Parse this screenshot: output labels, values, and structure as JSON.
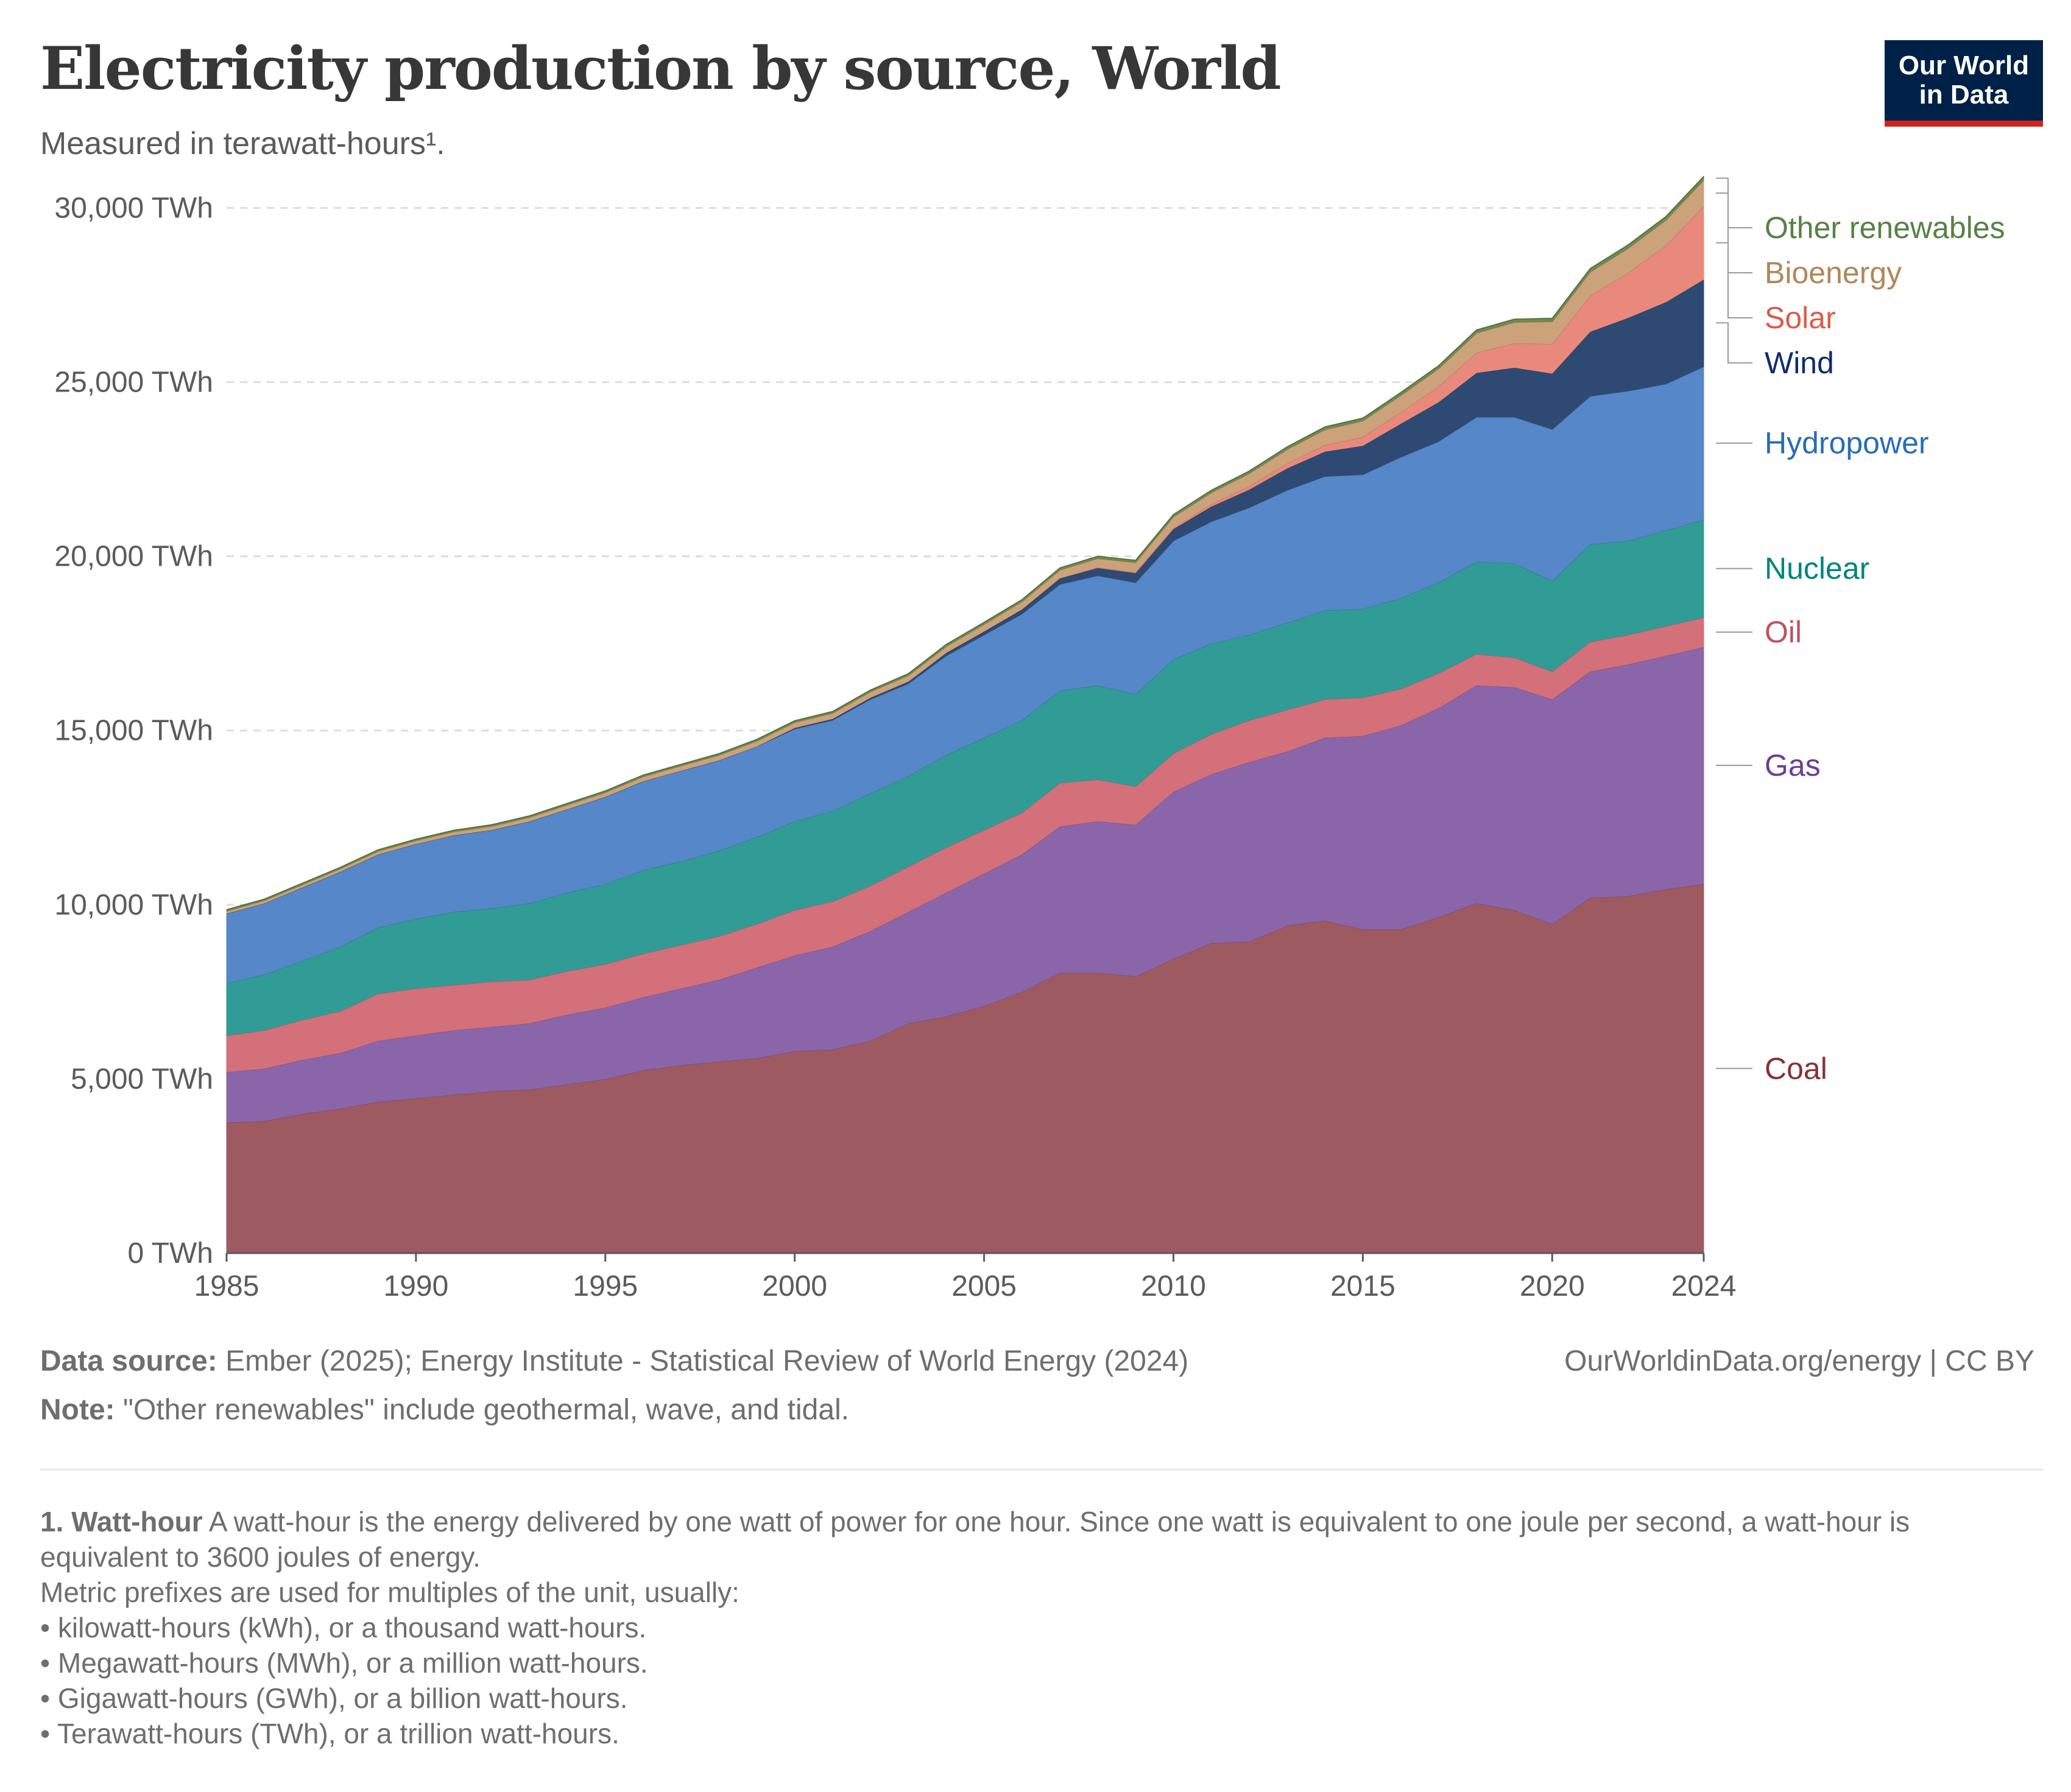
{
  "header": {
    "title": "Electricity production by source, World",
    "subtitle": "Measured in terawatt-hours¹."
  },
  "logo": {
    "line1": "Our World",
    "line2": "in Data"
  },
  "footer": {
    "source_label": "Data source:",
    "source_text": " Ember (2025); Energy Institute - Statistical Review of World Energy (2024)",
    "url": "OurWorldinData.org/energy | CC BY",
    "note_label": "Note:",
    "note_text": " \"Other renewables\" include geothermal, wave, and tidal."
  },
  "footnote": {
    "term": "1. Watt-hour",
    "definition": " A watt-hour is the energy delivered by one watt of power for one hour. Since one watt is equivalent to one joule per second, a watt-hour is equivalent to 3600 joules of energy.",
    "prefix_intro": "Metric prefixes are used for multiples of the unit, usually:",
    "bullets": [
      "• kilowatt-hours (kWh), or a thousand watt-hours.",
      "• Megawatt-hours (MWh), or a million watt-hours.",
      "• Gigawatt-hours (GWh), or a billion watt-hours.",
      "• Terawatt-hours (TWh), or a trillion watt-hours."
    ]
  },
  "chart_data": {
    "type": "area",
    "stacked": true,
    "x": [
      1985,
      1986,
      1987,
      1988,
      1989,
      1990,
      1991,
      1992,
      1993,
      1994,
      1995,
      1996,
      1997,
      1998,
      1999,
      2000,
      2001,
      2002,
      2003,
      2004,
      2005,
      2006,
      2007,
      2008,
      2009,
      2010,
      2011,
      2012,
      2013,
      2014,
      2015,
      2016,
      2017,
      2018,
      2019,
      2020,
      2021,
      2022,
      2023,
      2024
    ],
    "xticks": [
      1985,
      1990,
      1995,
      2000,
      2005,
      2010,
      2015,
      2020,
      2024
    ],
    "ylim": [
      0,
      30000
    ],
    "yticks": [
      0,
      5000,
      10000,
      15000,
      20000,
      25000,
      30000
    ],
    "ytick_labels": [
      "0 TWh",
      "5,000 TWh",
      "10,000 TWh",
      "15,000 TWh",
      "20,000 TWh",
      "25,000 TWh",
      "30,000 TWh"
    ],
    "grid": "horizontal-dashed",
    "legend": "right, labels at series ends",
    "series": [
      {
        "name": "Coal",
        "color": "#9e5a61",
        "label_color": "#883039",
        "values": [
          3750,
          3800,
          4000,
          4150,
          4350,
          4450,
          4550,
          4650,
          4700,
          4850,
          5000,
          5250,
          5400,
          5500,
          5600,
          5800,
          5850,
          6100,
          6600,
          6800,
          7100,
          7500,
          8050,
          8050,
          7950,
          8450,
          8900,
          8950,
          9400,
          9550,
          9300,
          9300,
          9650,
          10050,
          9850,
          9450,
          10200,
          10250,
          10450,
          10600
        ]
      },
      {
        "name": "Gas",
        "color": "#8b65a9",
        "label_color": "#6d3e91",
        "values": [
          1450,
          1500,
          1550,
          1600,
          1750,
          1800,
          1850,
          1850,
          1900,
          2000,
          2050,
          2100,
          2200,
          2350,
          2600,
          2750,
          2950,
          3150,
          3200,
          3550,
          3800,
          3950,
          4200,
          4350,
          4350,
          4800,
          4850,
          5150,
          5000,
          5250,
          5550,
          5850,
          6000,
          6250,
          6400,
          6450,
          6500,
          6650,
          6700,
          6800
        ]
      },
      {
        "name": "Oil",
        "color": "#d3707a",
        "label_color": "#c15065",
        "values": [
          1050,
          1100,
          1150,
          1200,
          1350,
          1350,
          1300,
          1300,
          1250,
          1250,
          1250,
          1250,
          1250,
          1250,
          1250,
          1300,
          1300,
          1300,
          1300,
          1300,
          1250,
          1200,
          1250,
          1200,
          1100,
          1100,
          1150,
          1200,
          1200,
          1100,
          1100,
          1050,
          1000,
          900,
          850,
          800,
          850,
          850,
          850,
          850
        ]
      },
      {
        "name": "Nuclear",
        "color": "#319c96",
        "label_color": "#00847e",
        "values": [
          1500,
          1600,
          1700,
          1850,
          1900,
          2000,
          2100,
          2100,
          2200,
          2250,
          2300,
          2400,
          2400,
          2450,
          2500,
          2550,
          2600,
          2650,
          2600,
          2650,
          2650,
          2650,
          2650,
          2700,
          2650,
          2700,
          2600,
          2450,
          2500,
          2550,
          2550,
          2600,
          2600,
          2650,
          2700,
          2600,
          2800,
          2700,
          2750,
          2800
        ]
      },
      {
        "name": "Hydropower",
        "color": "#5587c9",
        "label_color": "#286bbb",
        "values": [
          2000,
          2050,
          2100,
          2150,
          2100,
          2150,
          2200,
          2250,
          2350,
          2400,
          2500,
          2550,
          2600,
          2600,
          2600,
          2650,
          2600,
          2700,
          2650,
          2850,
          2950,
          3050,
          3050,
          3150,
          3200,
          3400,
          3500,
          3650,
          3800,
          3850,
          3850,
          4050,
          4050,
          4150,
          4200,
          4350,
          4250,
          4300,
          4200,
          4400
        ]
      },
      {
        "name": "Wind",
        "color": "#2e4a73",
        "label_color": "#0f2d6b",
        "values": [
          0,
          0,
          0,
          0,
          0,
          0,
          0,
          0,
          0,
          0,
          0,
          0,
          0,
          0,
          0,
          30,
          40,
          50,
          60,
          85,
          100,
          130,
          170,
          220,
          275,
          340,
          435,
          520,
          630,
          710,
          830,
          960,
          1130,
          1270,
          1420,
          1600,
          1850,
          2100,
          2350,
          2500
        ]
      },
      {
        "name": "Solar",
        "color": "#e9897b",
        "label_color": "#d95c4c",
        "values": [
          0,
          0,
          0,
          0,
          0,
          0,
          0,
          0,
          0,
          0,
          0,
          0,
          0,
          0,
          0,
          0,
          0,
          0,
          0,
          0,
          0,
          5,
          10,
          20,
          30,
          35,
          65,
          100,
          140,
          190,
          250,
          330,
          450,
          580,
          700,
          850,
          1030,
          1290,
          1630,
          2100
        ]
      },
      {
        "name": "Bioenergy",
        "color": "#cba27a",
        "label_color": "#b28659",
        "values": [
          70,
          75,
          80,
          85,
          90,
          95,
          100,
          105,
          110,
          120,
          125,
          130,
          140,
          145,
          150,
          155,
          160,
          165,
          170,
          180,
          200,
          215,
          230,
          250,
          270,
          310,
          330,
          360,
          400,
          440,
          460,
          480,
          510,
          560,
          600,
          640,
          680,
          700,
          720,
          750
        ]
      },
      {
        "name": "Other renewables",
        "color": "#6d8b4e",
        "label_color": "#578145",
        "values": [
          40,
          40,
          40,
          40,
          40,
          40,
          40,
          45,
          45,
          45,
          45,
          45,
          45,
          45,
          50,
          50,
          50,
          50,
          55,
          60,
          60,
          60,
          60,
          65,
          65,
          70,
          70,
          70,
          75,
          80,
          80,
          85,
          85,
          90,
          90,
          95,
          100,
          100,
          105,
          110
        ]
      }
    ]
  }
}
